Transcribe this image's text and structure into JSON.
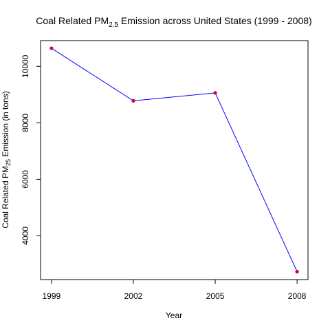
{
  "chart_data": {
    "type": "line",
    "title": {
      "prefix": "Coal Related PM",
      "subscript": "2.5",
      "suffix": " Emission across United States (1999 - 2008)"
    },
    "xlabel": "Year",
    "ylabel": {
      "prefix": "Coal Related PM",
      "subscript": "25",
      "suffix": " Emission (in tons)"
    },
    "x": [
      1999,
      2002,
      2005,
      2008
    ],
    "values": [
      10640,
      8780,
      9060,
      2730
    ],
    "x_ticks": [
      "1999",
      "2002",
      "2005",
      "2008"
    ],
    "y_ticks": [
      4000,
      6000,
      8000,
      10000
    ],
    "y_tick_labels": [
      "4000",
      "6000",
      "8000",
      "10000"
    ],
    "xlim": [
      1998.6,
      2008.4
    ],
    "ylim": [
      2450,
      10910
    ],
    "grid": false,
    "legend": "none",
    "line_color": "#0000ff",
    "point_color": "#cc0044",
    "axis_color": "#000000"
  }
}
